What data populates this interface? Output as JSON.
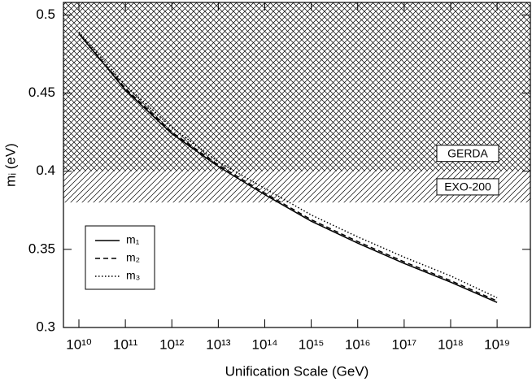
{
  "chart_data": {
    "type": "line",
    "x_label": "Unification Scale (GeV)",
    "y_label": "mᵢ (eV)",
    "x_scale": "log",
    "x": [
      10000000000.0,
      100000000000.0,
      1000000000000.0,
      10000000000000.0,
      100000000000000.0,
      1000000000000000.0,
      1e+16,
      1e+17,
      1e+18,
      1e+19
    ],
    "series": [
      {
        "name": "m₁",
        "color": "#000000",
        "dash": "solid",
        "values": [
          0.488,
          0.452,
          0.424,
          0.403,
          0.385,
          0.368,
          0.354,
          0.341,
          0.329,
          0.316
        ]
      },
      {
        "name": "m₂",
        "color": "#000000",
        "dash": "dashed",
        "values": [
          0.488,
          0.453,
          0.425,
          0.404,
          0.386,
          0.369,
          0.355,
          0.342,
          0.33,
          0.317
        ]
      },
      {
        "name": "m₃",
        "color": "#000000",
        "dash": "dotted",
        "values": [
          0.489,
          0.455,
          0.428,
          0.406,
          0.389,
          0.372,
          0.358,
          0.345,
          0.333,
          0.319
        ]
      }
    ],
    "bands": [
      {
        "label": "GERDA",
        "ymin": 0.4,
        "pattern": "crosshatch"
      },
      {
        "label": "EXO-200",
        "ymin": 0.38,
        "ymax": 0.4,
        "pattern": "diagonal"
      }
    ],
    "xlim": [
      4650000000,
      52000000000000000000
    ],
    "ylim": [
      0.3,
      0.508
    ],
    "xticks": [
      {
        "value": 10000000000.0,
        "label": "10¹⁰"
      },
      {
        "value": 100000000000.0,
        "label": "10¹¹"
      },
      {
        "value": 1000000000000.0,
        "label": "10¹²"
      },
      {
        "value": 10000000000000.0,
        "label": "10¹³"
      },
      {
        "value": 100000000000000.0,
        "label": "10¹⁴"
      },
      {
        "value": 1000000000000000.0,
        "label": "10¹⁵"
      },
      {
        "value": 1e+16,
        "label": "10¹⁶"
      },
      {
        "value": 1e+17,
        "label": "10¹⁷"
      },
      {
        "value": 1e+18,
        "label": "10¹⁸"
      },
      {
        "value": 1e+19,
        "label": "10¹⁹"
      }
    ],
    "yticks": [
      {
        "value": 0.3,
        "label": "0.3"
      },
      0.35,
      {
        "value": 0.4,
        "label": "0.4"
      },
      0.45,
      {
        "value": 0.5,
        "label": "0.5"
      }
    ],
    "legend": "lower-left"
  }
}
